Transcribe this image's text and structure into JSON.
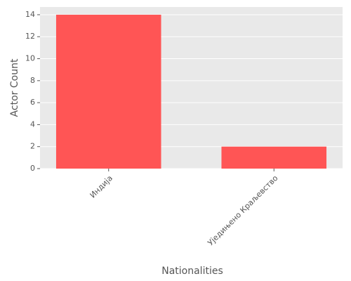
{
  "chart_data": {
    "type": "bar",
    "x_label": "Nationalities",
    "y_label": "Actor Count",
    "categories": [
      "Индија",
      "Уједињено Краљевство"
    ],
    "values": [
      14,
      2
    ],
    "color": "#ff5555",
    "ylim": [
      0,
      14.7
    ],
    "yticks": [
      0,
      2,
      4,
      6,
      8,
      10,
      12,
      14
    ],
    "grid": true
  }
}
